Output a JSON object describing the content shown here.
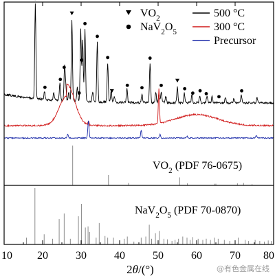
{
  "chart_data": {
    "type": "line",
    "xlabel": "2θ/(°)",
    "xlim": [
      10,
      80
    ],
    "x_ticks": [
      10,
      20,
      30,
      40,
      50,
      60,
      70,
      80
    ],
    "legend": {
      "placement": "top-right",
      "entries": [
        {
          "label": "500 °C",
          "color": "#000000"
        },
        {
          "label": "300 °C",
          "color": "#d01818"
        },
        {
          "label": "Precursor",
          "color": "#1a2aa8"
        }
      ]
    },
    "marker_legend": {
      "placement": "top-center",
      "entries": [
        {
          "symbol": "▼",
          "label": "VO₂"
        },
        {
          "symbol": "●",
          "label": "NaV₂O₅"
        }
      ]
    },
    "series": [
      {
        "name": "500 °C",
        "color": "#000000",
        "baseline": 0.6,
        "peaks": [
          [
            18.1,
            3.8
          ],
          [
            20.5,
            0.3
          ],
          [
            22.9,
            0.32
          ],
          [
            24.5,
            0.75
          ],
          [
            25.7,
            1.35
          ],
          [
            26.0,
            0.6
          ],
          [
            26.8,
            0.35
          ],
          [
            27.6,
            3.3
          ],
          [
            29.0,
            0.55
          ],
          [
            29.9,
            2.9
          ],
          [
            30.4,
            2.5
          ],
          [
            31.0,
            2.9
          ],
          [
            33.0,
            0.4
          ],
          [
            34.2,
            2.4
          ],
          [
            36.9,
            1.55
          ],
          [
            37.8,
            0.5
          ],
          [
            38.6,
            0.2
          ],
          [
            41.9,
            0.55
          ],
          [
            45.8,
            0.35
          ],
          [
            47.9,
            1.55
          ],
          [
            49.4,
            0.4
          ],
          [
            50.2,
            0.35
          ],
          [
            50.8,
            0.45
          ],
          [
            52.0,
            0.25
          ],
          [
            55.0,
            0.65
          ],
          [
            56.8,
            0.4
          ],
          [
            58.8,
            0.35
          ],
          [
            60.8,
            0.3
          ],
          [
            62.7,
            0.3
          ],
          [
            64.0,
            0.25
          ],
          [
            67.5,
            0.22
          ],
          [
            69.7,
            0.2
          ],
          [
            71.6,
            0.3
          ],
          [
            75.7,
            0.2
          ]
        ],
        "vo2_markers": [
          27.6,
          38.0,
          55.0
        ],
        "nav2o5_markers": [
          18.1,
          20.6,
          24.6,
          25.6,
          29.5,
          30.2,
          31.0,
          34.2,
          36.9,
          42.0,
          45.8,
          47.9,
          50.8,
          56.9,
          59.0,
          60.9,
          62.5,
          65.8,
          71.7
        ]
      },
      {
        "name": "300 °C",
        "color": "#d01818",
        "baseline": 0.2,
        "broad_humps": [
          [
            26.3,
            1.2
          ],
          [
            60.0,
            0.45
          ]
        ],
        "peaks": [
          [
            50.2,
            1.4
          ],
          [
            31.9,
            0.15
          ]
        ]
      },
      {
        "name": "Precursor",
        "color": "#1a2aa8",
        "baseline": 0.05,
        "peaks": [
          [
            26.5,
            0.15
          ],
          [
            31.9,
            0.7
          ],
          [
            45.6,
            0.3
          ],
          [
            50.5,
            0.15
          ],
          [
            57.5,
            0.08
          ],
          [
            75.5,
            0.1
          ]
        ]
      }
    ],
    "reference_patterns": [
      {
        "label": "VO₂ (PDF 76-0675)",
        "lines": [
          [
            27.8,
            1.0
          ],
          [
            37.1,
            0.26
          ],
          [
            42.3,
            0.06
          ],
          [
            55.6,
            0.2
          ],
          [
            57.6,
            0.05
          ],
          [
            64.7,
            0.04
          ],
          [
            65.0,
            0.04
          ],
          [
            70.6,
            0.05
          ],
          [
            72.2,
            0.06
          ],
          [
            74.4,
            0.03
          ]
        ]
      },
      {
        "label": "NaV₂O₅ (PDF 70-0870)",
        "lines": [
          [
            15.8,
            0.12
          ],
          [
            18.0,
            1.0
          ],
          [
            20.4,
            0.18
          ],
          [
            22.6,
            0.1
          ],
          [
            24.3,
            0.45
          ],
          [
            25.6,
            0.55
          ],
          [
            27.2,
            0.1
          ],
          [
            29.3,
            0.5
          ],
          [
            30.1,
            0.72
          ],
          [
            31.1,
            0.3
          ],
          [
            31.8,
            0.32
          ],
          [
            32.2,
            0.22
          ],
          [
            33.9,
            0.12
          ],
          [
            34.7,
            0.38
          ],
          [
            36.2,
            0.15
          ],
          [
            36.9,
            0.12
          ],
          [
            38.4,
            0.12
          ],
          [
            41.2,
            0.1
          ],
          [
            42.0,
            0.14
          ],
          [
            43.7,
            0.05
          ],
          [
            45.6,
            0.12
          ],
          [
            46.8,
            0.14
          ],
          [
            47.7,
            0.35
          ],
          [
            48.3,
            0.1
          ],
          [
            49.3,
            0.2
          ],
          [
            50.3,
            0.24
          ],
          [
            51.5,
            0.1
          ],
          [
            52.4,
            0.09
          ],
          [
            53.6,
            0.06
          ],
          [
            54.4,
            0.08
          ],
          [
            55.3,
            0.1
          ],
          [
            56.4,
            0.14
          ],
          [
            57.5,
            0.12
          ],
          [
            58.3,
            0.08
          ],
          [
            59.0,
            0.13
          ],
          [
            60.4,
            0.1
          ],
          [
            61.6,
            0.08
          ],
          [
            62.5,
            0.1
          ],
          [
            63.6,
            0.08
          ],
          [
            64.6,
            0.12
          ],
          [
            65.6,
            0.1
          ],
          [
            67.2,
            0.08
          ],
          [
            68.6,
            0.06
          ],
          [
            70.8,
            0.12
          ],
          [
            72.6,
            0.08
          ],
          [
            73.5,
            0.06
          ],
          [
            75.2,
            0.08
          ],
          [
            76.4,
            0.06
          ],
          [
            77.6,
            0.05
          ],
          [
            78.6,
            0.07
          ],
          [
            79.4,
            0.06
          ]
        ]
      }
    ]
  },
  "watermark_text": "@有色金属在线"
}
